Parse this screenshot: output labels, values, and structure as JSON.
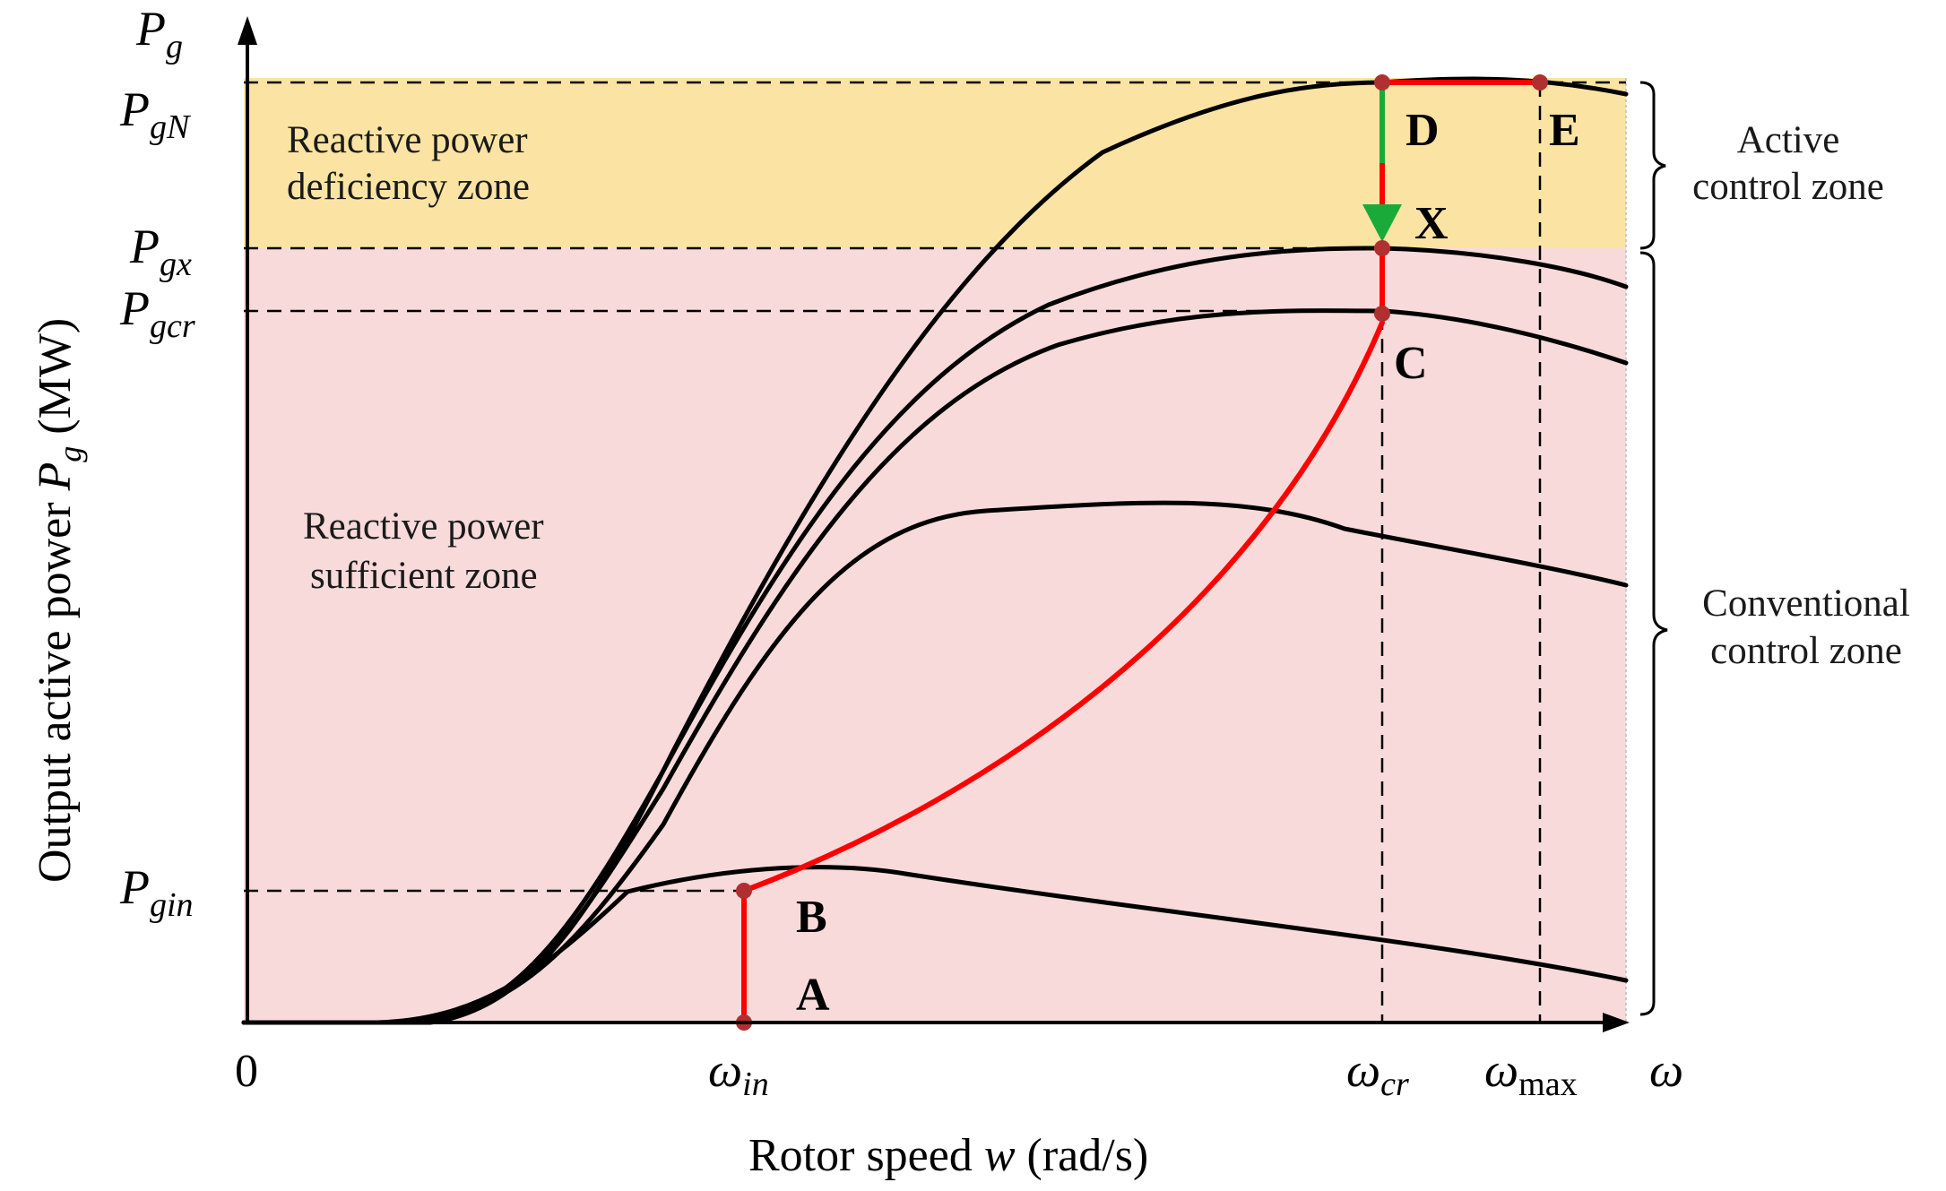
{
  "zones": {
    "deficiency": {
      "line1": "Reactive power",
      "line2": "deficiency zone",
      "color": "#fbe4a3"
    },
    "sufficient": {
      "line1": "Reactive power",
      "line2": "sufficient zone",
      "color": "#f8dada"
    }
  },
  "brackets": {
    "active": {
      "line1": "Active",
      "line2": "control zone"
    },
    "conventional": {
      "line1": "Conventional",
      "line2": "control zone"
    }
  },
  "axes": {
    "x_title_prefix": "Rotor speed ",
    "x_title_var": "w",
    "x_title_suffix": " (rad/s)",
    "y_title_prefix": "Output active power ",
    "y_title_var": "P",
    "y_title_sub": "g",
    "y_title_suffix": " (MW)",
    "origin": "0",
    "x_end": "ω",
    "y_end": {
      "main": "P",
      "sub": "g"
    }
  },
  "y_ticks": [
    {
      "id": "PgN",
      "main": "P",
      "sub": "gN"
    },
    {
      "id": "Pgx",
      "main": "P",
      "sub": "gx"
    },
    {
      "id": "Pgcr",
      "main": "P",
      "sub": "gcr"
    },
    {
      "id": "Pgin",
      "main": "P",
      "sub": "gin"
    }
  ],
  "x_ticks": [
    {
      "id": "win",
      "main": "ω",
      "sub": "in"
    },
    {
      "id": "wcr",
      "main": "ω",
      "sub": "cr"
    },
    {
      "id": "wmax",
      "main": "ω",
      "sub": "max"
    }
  ],
  "points": {
    "A": "A",
    "B": "B",
    "C": "C",
    "D": "D",
    "E": "E",
    "X": "X"
  },
  "colors": {
    "curve": "#000000",
    "trajectory": "#ff0000",
    "transition": "#1aaa3a",
    "marker": "#b03030"
  }
}
